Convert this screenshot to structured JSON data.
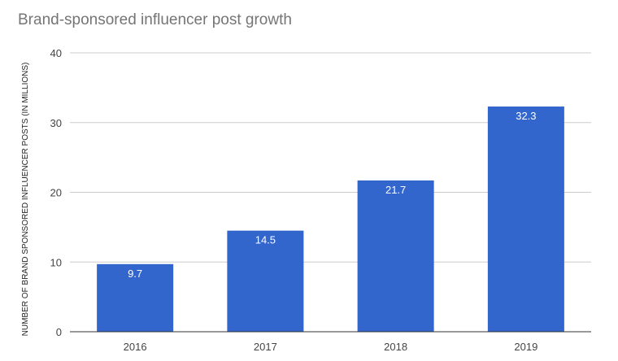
{
  "chart_data": {
    "type": "bar",
    "title": "Brand-sponsored influencer post growth",
    "xlabel": "",
    "ylabel": "NUMBER OF BRAND SPONSORED INFLUENCER POSTS (IN MILLIONS)",
    "categories": [
      "2016",
      "2017",
      "2018",
      "2019"
    ],
    "values": [
      9.7,
      14.5,
      21.7,
      32.3
    ],
    "data_labels": [
      "9.7",
      "14.5",
      "21.7",
      "32.3"
    ],
    "ylim": [
      0,
      40
    ],
    "yticks": [
      0,
      10,
      20,
      30,
      40
    ],
    "grid": true,
    "legend": "none",
    "bar_color": "#3366cc",
    "gridline_color": "#cccccc",
    "axis_color": "#333333"
  }
}
